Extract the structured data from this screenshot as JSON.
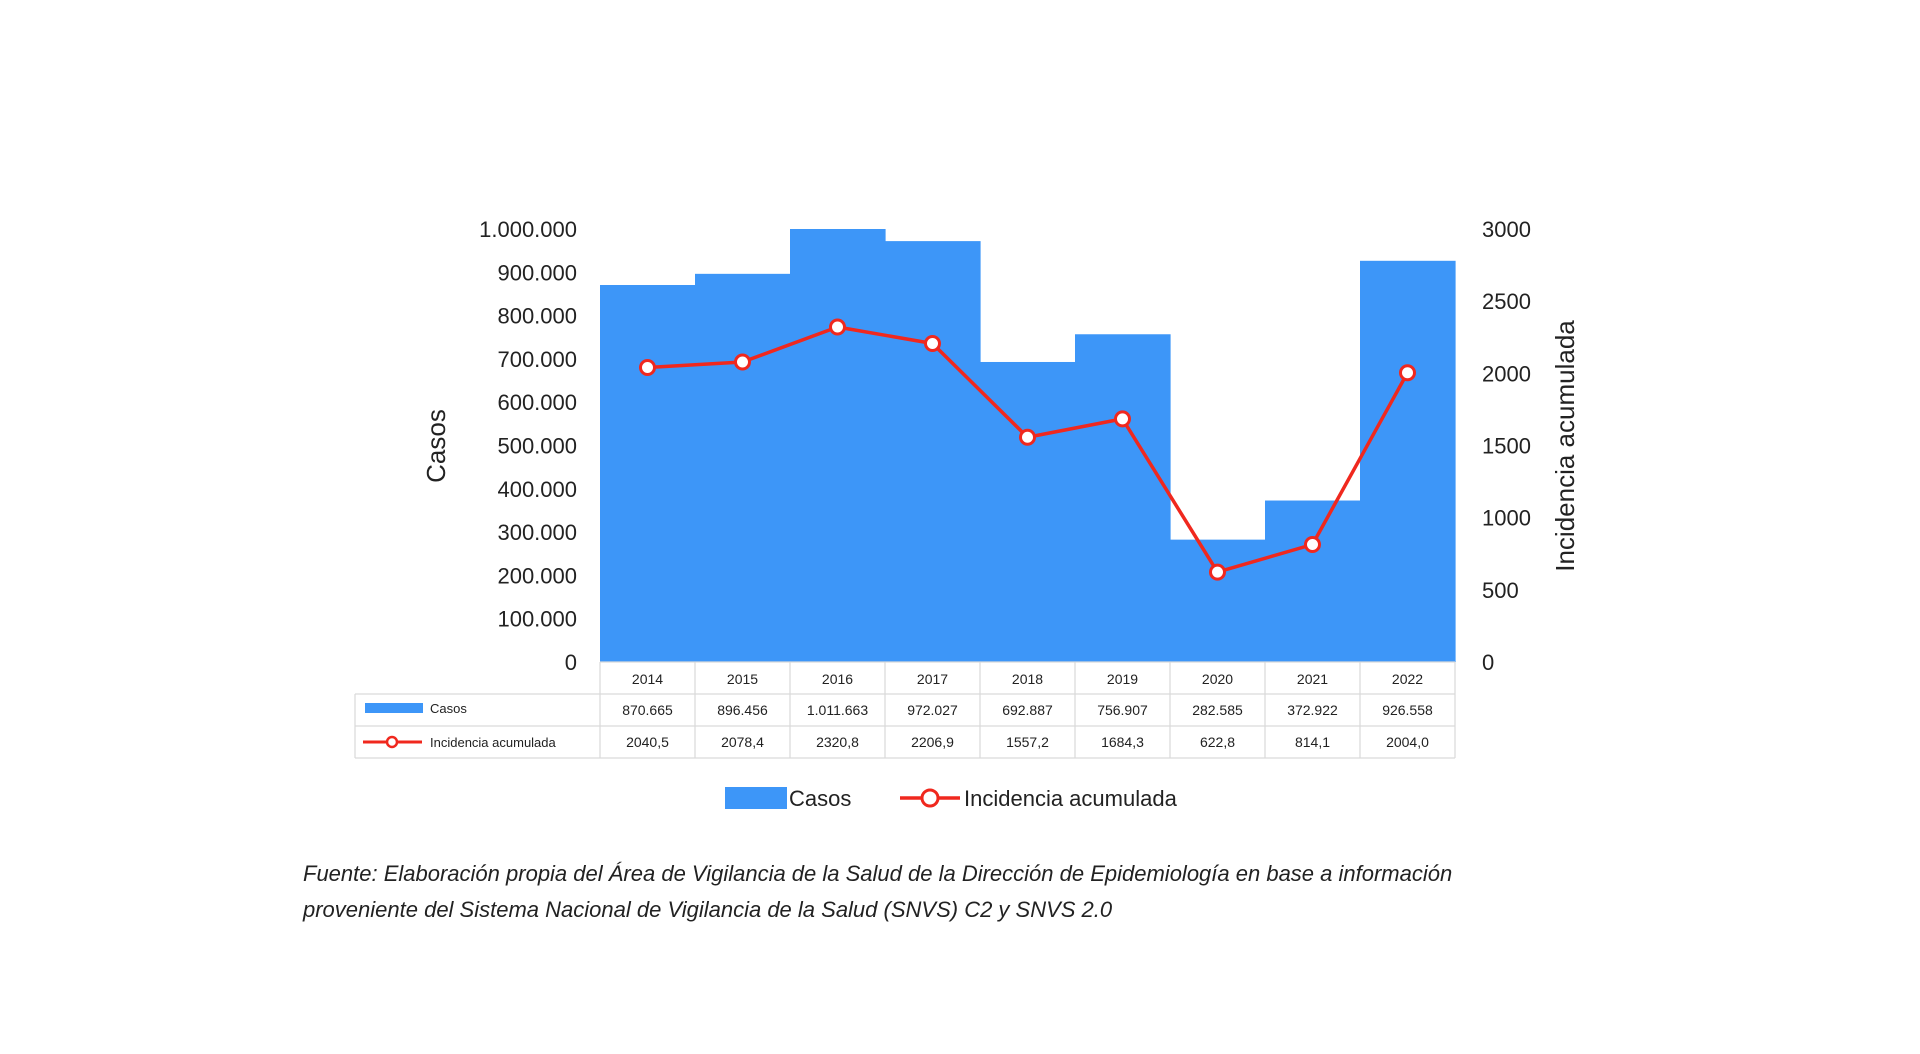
{
  "chart_data": {
    "type": "bar",
    "categories": [
      "2014",
      "2015",
      "2016",
      "2017",
      "2018",
      "2019",
      "2020",
      "2021",
      "2022"
    ],
    "series": [
      {
        "name": "Casos",
        "type": "bar",
        "axis": "left",
        "values": [
          870665,
          896456,
          1011663,
          972027,
          692887,
          756907,
          282585,
          372922,
          926558
        ],
        "labels": [
          "870.665",
          "896.456",
          "1.011.663",
          "972.027",
          "692.887",
          "756.907",
          "282.585",
          "372.922",
          "926.558"
        ],
        "color": "#3d96f8"
      },
      {
        "name": "Incidencia acumulada",
        "type": "line",
        "axis": "right",
        "values": [
          2040.5,
          2078.4,
          2320.8,
          2206.9,
          1557.2,
          1684.3,
          622.8,
          814.1,
          2004.0
        ],
        "labels": [
          "2040,5",
          "2078,4",
          "2320,8",
          "2206,9",
          "1557,2",
          "1684,3",
          "622,8",
          "814,1",
          "2004,0"
        ],
        "color": "#f0281e"
      }
    ],
    "ylabel": "Casos",
    "y2label": "Incidencia acumulada",
    "ylim": [
      0,
      1000000
    ],
    "y2lim": [
      0,
      3000
    ],
    "yticks": [
      "0",
      "100.000",
      "200.000",
      "300.000",
      "400.000",
      "500.000",
      "600.000",
      "700.000",
      "800.000",
      "900.000",
      "1.000.000"
    ],
    "y2ticks": [
      "0",
      "500",
      "1000",
      "1500",
      "2000",
      "2500",
      "3000"
    ],
    "legend_position": "bottom",
    "data_table": true
  },
  "source_lines": [
    "Fuente: Elaboración propia del Área de Vigilancia de la Salud de la Dirección de Epidemiología en base a información",
    "proveniente del Sistema Nacional de Vigilancia de la Salud (SNVS) C2 y SNVS 2.0"
  ]
}
